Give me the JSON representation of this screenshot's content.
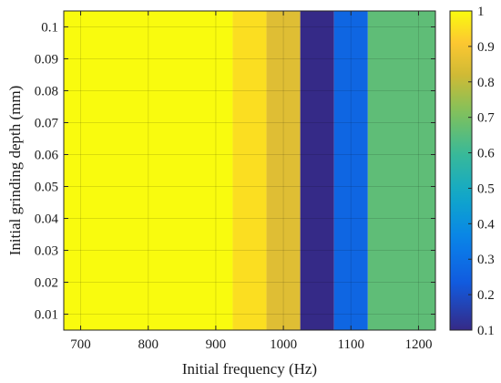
{
  "chart_data": {
    "type": "heatmap",
    "title": "",
    "xlabel": "Initial frequency (Hz)",
    "ylabel": "Initial grinding depth (mm)",
    "xlim": [
      675,
      1225
    ],
    "ylim": [
      0.005,
      0.105
    ],
    "xticks": [
      700,
      800,
      900,
      1000,
      1100,
      1200
    ],
    "xtick_labels": [
      "700",
      "800",
      "900",
      "1000",
      "1100",
      "1200"
    ],
    "yticks": [
      0.01,
      0.02,
      0.03,
      0.04,
      0.05,
      0.06,
      0.07,
      0.08,
      0.09,
      0.1
    ],
    "ytick_labels": [
      "0.01",
      "0.02",
      "0.03",
      "0.04",
      "0.05",
      "0.06",
      "0.07",
      "0.08",
      "0.09",
      "0.1"
    ],
    "grid": true,
    "bands": [
      {
        "x_start": 675,
        "x_end": 925,
        "value": 1.0
      },
      {
        "x_start": 925,
        "x_end": 975,
        "value": 0.95
      },
      {
        "x_start": 975,
        "x_end": 1025,
        "value": 0.85
      },
      {
        "x_start": 1025,
        "x_end": 1075,
        "value": 0.1
      },
      {
        "x_start": 1075,
        "x_end": 1125,
        "value": 0.27
      },
      {
        "x_start": 1125,
        "x_end": 1225,
        "value": 0.66
      }
    ],
    "colorbar": {
      "min": 0.1,
      "max": 1.0,
      "ticks": [
        0.1,
        0.2,
        0.3,
        0.4,
        0.5,
        0.6,
        0.7,
        0.8,
        0.9,
        1.0
      ],
      "tick_labels": [
        "0.1",
        "0.2",
        "0.3",
        "0.4",
        "0.5",
        "0.6",
        "0.7",
        "0.8",
        "0.9",
        "1"
      ],
      "colormap": "parula"
    }
  }
}
